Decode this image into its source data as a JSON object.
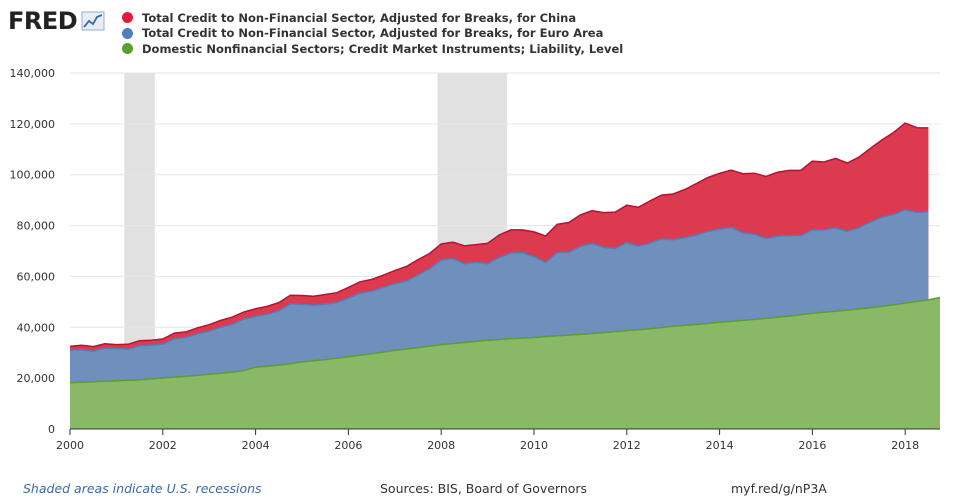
{
  "header": {
    "logo_text": "FRED",
    "logo_icon": "line-chart-icon"
  },
  "legend": [
    {
      "label": "Total Credit to Non-Financial Sector, Adjusted for Breaks, for China",
      "color": "#e11d3b"
    },
    {
      "label": "Total Credit to Non-Financial Sector, Adjusted for Breaks, for Euro Area",
      "color": "#4e7fbd"
    },
    {
      "label": "Domestic Nonfinancial Sectors; Credit Market Instruments; Liability, Level",
      "color": "#5d9e2e"
    }
  ],
  "footer": {
    "recession_note": "Shaded areas indicate U.S. recessions",
    "sources": "Sources: BIS, Board of Governors",
    "short_url": "myf.red/g/nP3A"
  },
  "chart_data": {
    "type": "area",
    "stacked": true,
    "xlim": [
      2000,
      2018.75
    ],
    "ylim": [
      0,
      140000
    ],
    "x_ticks": [
      2000,
      2002,
      2004,
      2006,
      2008,
      2010,
      2012,
      2014,
      2016,
      2018
    ],
    "y_ticks": [
      0,
      20000,
      40000,
      60000,
      80000,
      100000,
      120000,
      140000
    ],
    "y_tick_labels": [
      "0",
      "20,000",
      "40,000",
      "60,000",
      "80,000",
      "100,000",
      "120,000",
      "140,000"
    ],
    "grid": {
      "horizontal": true,
      "vertical": false
    },
    "recessions": [
      [
        2001.17,
        2001.83
      ],
      [
        2007.92,
        2009.42
      ]
    ],
    "series": [
      {
        "name": "Domestic Nonfinancial Sectors; Credit Market Instruments; Liability, Level",
        "color": "#89b866",
        "line_color": "#5d9e2e",
        "points": [
          [
            2000,
            18200
          ],
          [
            2000.5,
            18600
          ],
          [
            2001,
            19000
          ],
          [
            2001.5,
            19300
          ],
          [
            2002,
            20100
          ],
          [
            2002.5,
            20700
          ],
          [
            2003,
            21500
          ],
          [
            2003.5,
            22300
          ],
          [
            2003.75,
            23000
          ],
          [
            2004,
            24300
          ],
          [
            2004.5,
            25100
          ],
          [
            2005,
            26400
          ],
          [
            2005.5,
            27300
          ],
          [
            2006,
            28400
          ],
          [
            2006.5,
            29600
          ],
          [
            2007,
            30900
          ],
          [
            2007.5,
            32000
          ],
          [
            2008,
            33200
          ],
          [
            2008.5,
            34000
          ],
          [
            2009,
            34900
          ],
          [
            2009.5,
            35500
          ],
          [
            2010,
            36000
          ],
          [
            2010.5,
            36700
          ],
          [
            2011,
            37200
          ],
          [
            2011.5,
            37900
          ],
          [
            2012,
            38700
          ],
          [
            2012.5,
            39400
          ],
          [
            2013,
            40400
          ],
          [
            2013.5,
            41100
          ],
          [
            2014,
            42000
          ],
          [
            2014.5,
            42700
          ],
          [
            2015,
            43500
          ],
          [
            2015.5,
            44400
          ],
          [
            2016,
            45500
          ],
          [
            2016.5,
            46300
          ],
          [
            2017,
            47200
          ],
          [
            2017.5,
            48200
          ],
          [
            2018,
            49500
          ],
          [
            2018.5,
            50800
          ],
          [
            2018.75,
            51700
          ]
        ]
      },
      {
        "name": "Total Credit to Non-Financial Sector, Adjusted for Breaks, for Euro Area",
        "color": "#6f8fbd",
        "line_color": "#4e7fbd",
        "points": [
          [
            2000,
            31000
          ],
          [
            2000.25,
            31200
          ],
          [
            2000.5,
            30600
          ],
          [
            2000.75,
            31800
          ],
          [
            2001,
            31600
          ],
          [
            2001.25,
            31400
          ],
          [
            2001.5,
            32800
          ],
          [
            2001.75,
            33000
          ],
          [
            2002,
            33300
          ],
          [
            2002.25,
            35500
          ],
          [
            2002.5,
            36000
          ],
          [
            2002.75,
            37400
          ],
          [
            2003,
            38500
          ],
          [
            2003.25,
            40000
          ],
          [
            2003.5,
            41200
          ],
          [
            2003.75,
            43200
          ],
          [
            2004,
            44300
          ],
          [
            2004.25,
            45100
          ],
          [
            2004.5,
            46500
          ],
          [
            2004.75,
            49200
          ],
          [
            2005,
            49000
          ],
          [
            2005.25,
            48600
          ],
          [
            2005.5,
            49100
          ],
          [
            2005.75,
            49700
          ],
          [
            2006,
            51500
          ],
          [
            2006.25,
            53500
          ],
          [
            2006.5,
            54100
          ],
          [
            2006.75,
            55700
          ],
          [
            2007,
            57100
          ],
          [
            2007.25,
            58200
          ],
          [
            2007.5,
            60600
          ],
          [
            2007.75,
            63000
          ],
          [
            2008,
            66500
          ],
          [
            2008.25,
            67000
          ],
          [
            2008.5,
            65000
          ],
          [
            2008.75,
            65500
          ],
          [
            2009,
            65000
          ],
          [
            2009.25,
            67500
          ],
          [
            2009.5,
            69200
          ],
          [
            2009.75,
            69300
          ],
          [
            2010,
            67800
          ],
          [
            2010.25,
            65500
          ],
          [
            2010.5,
            69400
          ],
          [
            2010.75,
            69500
          ],
          [
            2011,
            71800
          ],
          [
            2011.25,
            73000
          ],
          [
            2011.5,
            71400
          ],
          [
            2011.75,
            71000
          ],
          [
            2012,
            73300
          ],
          [
            2012.25,
            71900
          ],
          [
            2012.5,
            73100
          ],
          [
            2012.75,
            74700
          ],
          [
            2013,
            74400
          ],
          [
            2013.25,
            75200
          ],
          [
            2013.5,
            76300
          ],
          [
            2013.75,
            77700
          ],
          [
            2014,
            78600
          ],
          [
            2014.25,
            79300
          ],
          [
            2014.5,
            77100
          ],
          [
            2014.75,
            76600
          ],
          [
            2015,
            74900
          ],
          [
            2015.25,
            75800
          ],
          [
            2015.5,
            76100
          ],
          [
            2015.75,
            76100
          ],
          [
            2016,
            78300
          ],
          [
            2016.25,
            78300
          ],
          [
            2016.5,
            79100
          ],
          [
            2016.75,
            77700
          ],
          [
            2017,
            79100
          ],
          [
            2017.25,
            81400
          ],
          [
            2017.5,
            83300
          ],
          [
            2017.75,
            84400
          ],
          [
            2018,
            86200
          ],
          [
            2018.25,
            85200
          ],
          [
            2018.5,
            85400
          ]
        ]
      },
      {
        "name": "Total Credit to Non-Financial Sector, Adjusted for Breaks, for China",
        "color": "#dc3a4e",
        "line_color": "#b8122e",
        "points": [
          [
            2000,
            32500
          ],
          [
            2000.25,
            32900
          ],
          [
            2000.5,
            32400
          ],
          [
            2000.75,
            33500
          ],
          [
            2001,
            33200
          ],
          [
            2001.25,
            33300
          ],
          [
            2001.5,
            34700
          ],
          [
            2001.75,
            34900
          ],
          [
            2002,
            35400
          ],
          [
            2002.25,
            37700
          ],
          [
            2002.5,
            38200
          ],
          [
            2002.75,
            39800
          ],
          [
            2003,
            41000
          ],
          [
            2003.25,
            42700
          ],
          [
            2003.5,
            44000
          ],
          [
            2003.75,
            46000
          ],
          [
            2004,
            47300
          ],
          [
            2004.25,
            48200
          ],
          [
            2004.5,
            49700
          ],
          [
            2004.75,
            52600
          ],
          [
            2005,
            52500
          ],
          [
            2005.25,
            52200
          ],
          [
            2005.5,
            52900
          ],
          [
            2005.75,
            53600
          ],
          [
            2006,
            55700
          ],
          [
            2006.25,
            57900
          ],
          [
            2006.5,
            58800
          ],
          [
            2006.75,
            60500
          ],
          [
            2007,
            62300
          ],
          [
            2007.25,
            63900
          ],
          [
            2007.5,
            66600
          ],
          [
            2007.75,
            69000
          ],
          [
            2008,
            72800
          ],
          [
            2008.25,
            73500
          ],
          [
            2008.5,
            72000
          ],
          [
            2008.75,
            72500
          ],
          [
            2009,
            73000
          ],
          [
            2009.25,
            76300
          ],
          [
            2009.5,
            78300
          ],
          [
            2009.75,
            78300
          ],
          [
            2010,
            77500
          ],
          [
            2010.25,
            75900
          ],
          [
            2010.5,
            80500
          ],
          [
            2010.75,
            81200
          ],
          [
            2011,
            84200
          ],
          [
            2011.25,
            85900
          ],
          [
            2011.5,
            85100
          ],
          [
            2011.75,
            85300
          ],
          [
            2012,
            88000
          ],
          [
            2012.25,
            87200
          ],
          [
            2012.5,
            89700
          ],
          [
            2012.75,
            92000
          ],
          [
            2013,
            92400
          ],
          [
            2013.25,
            94200
          ],
          [
            2013.5,
            96500
          ],
          [
            2013.75,
            98900
          ],
          [
            2014,
            100500
          ],
          [
            2014.25,
            101800
          ],
          [
            2014.5,
            100400
          ],
          [
            2014.75,
            100600
          ],
          [
            2015,
            99300
          ],
          [
            2015.25,
            101000
          ],
          [
            2015.5,
            101700
          ],
          [
            2015.75,
            101700
          ],
          [
            2016,
            105300
          ],
          [
            2016.25,
            105000
          ],
          [
            2016.5,
            106400
          ],
          [
            2016.75,
            104600
          ],
          [
            2017,
            106900
          ],
          [
            2017.25,
            110400
          ],
          [
            2017.5,
            113700
          ],
          [
            2017.75,
            116600
          ],
          [
            2018,
            120300
          ],
          [
            2018.25,
            118500
          ],
          [
            2018.5,
            118400
          ]
        ]
      }
    ]
  }
}
